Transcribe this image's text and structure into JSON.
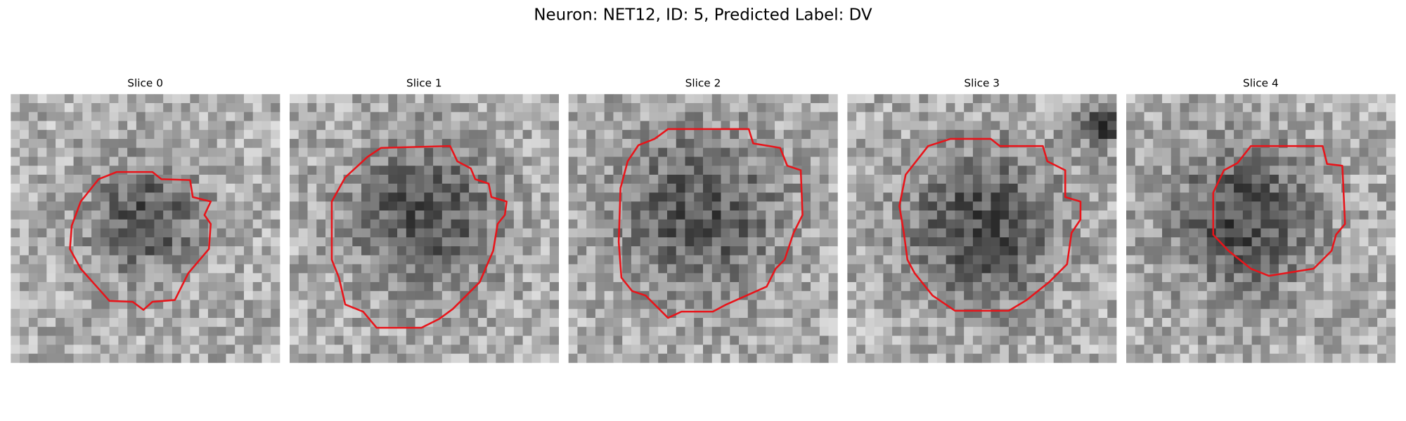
{
  "title": "Neuron: NET12, ID: 5, Predicted Label: DV",
  "panels": [
    {
      "title": "Slice 0"
    },
    {
      "title": "Slice 1"
    },
    {
      "title": "Slice 2"
    },
    {
      "title": "Slice 3"
    },
    {
      "title": "Slice 4"
    }
  ]
}
